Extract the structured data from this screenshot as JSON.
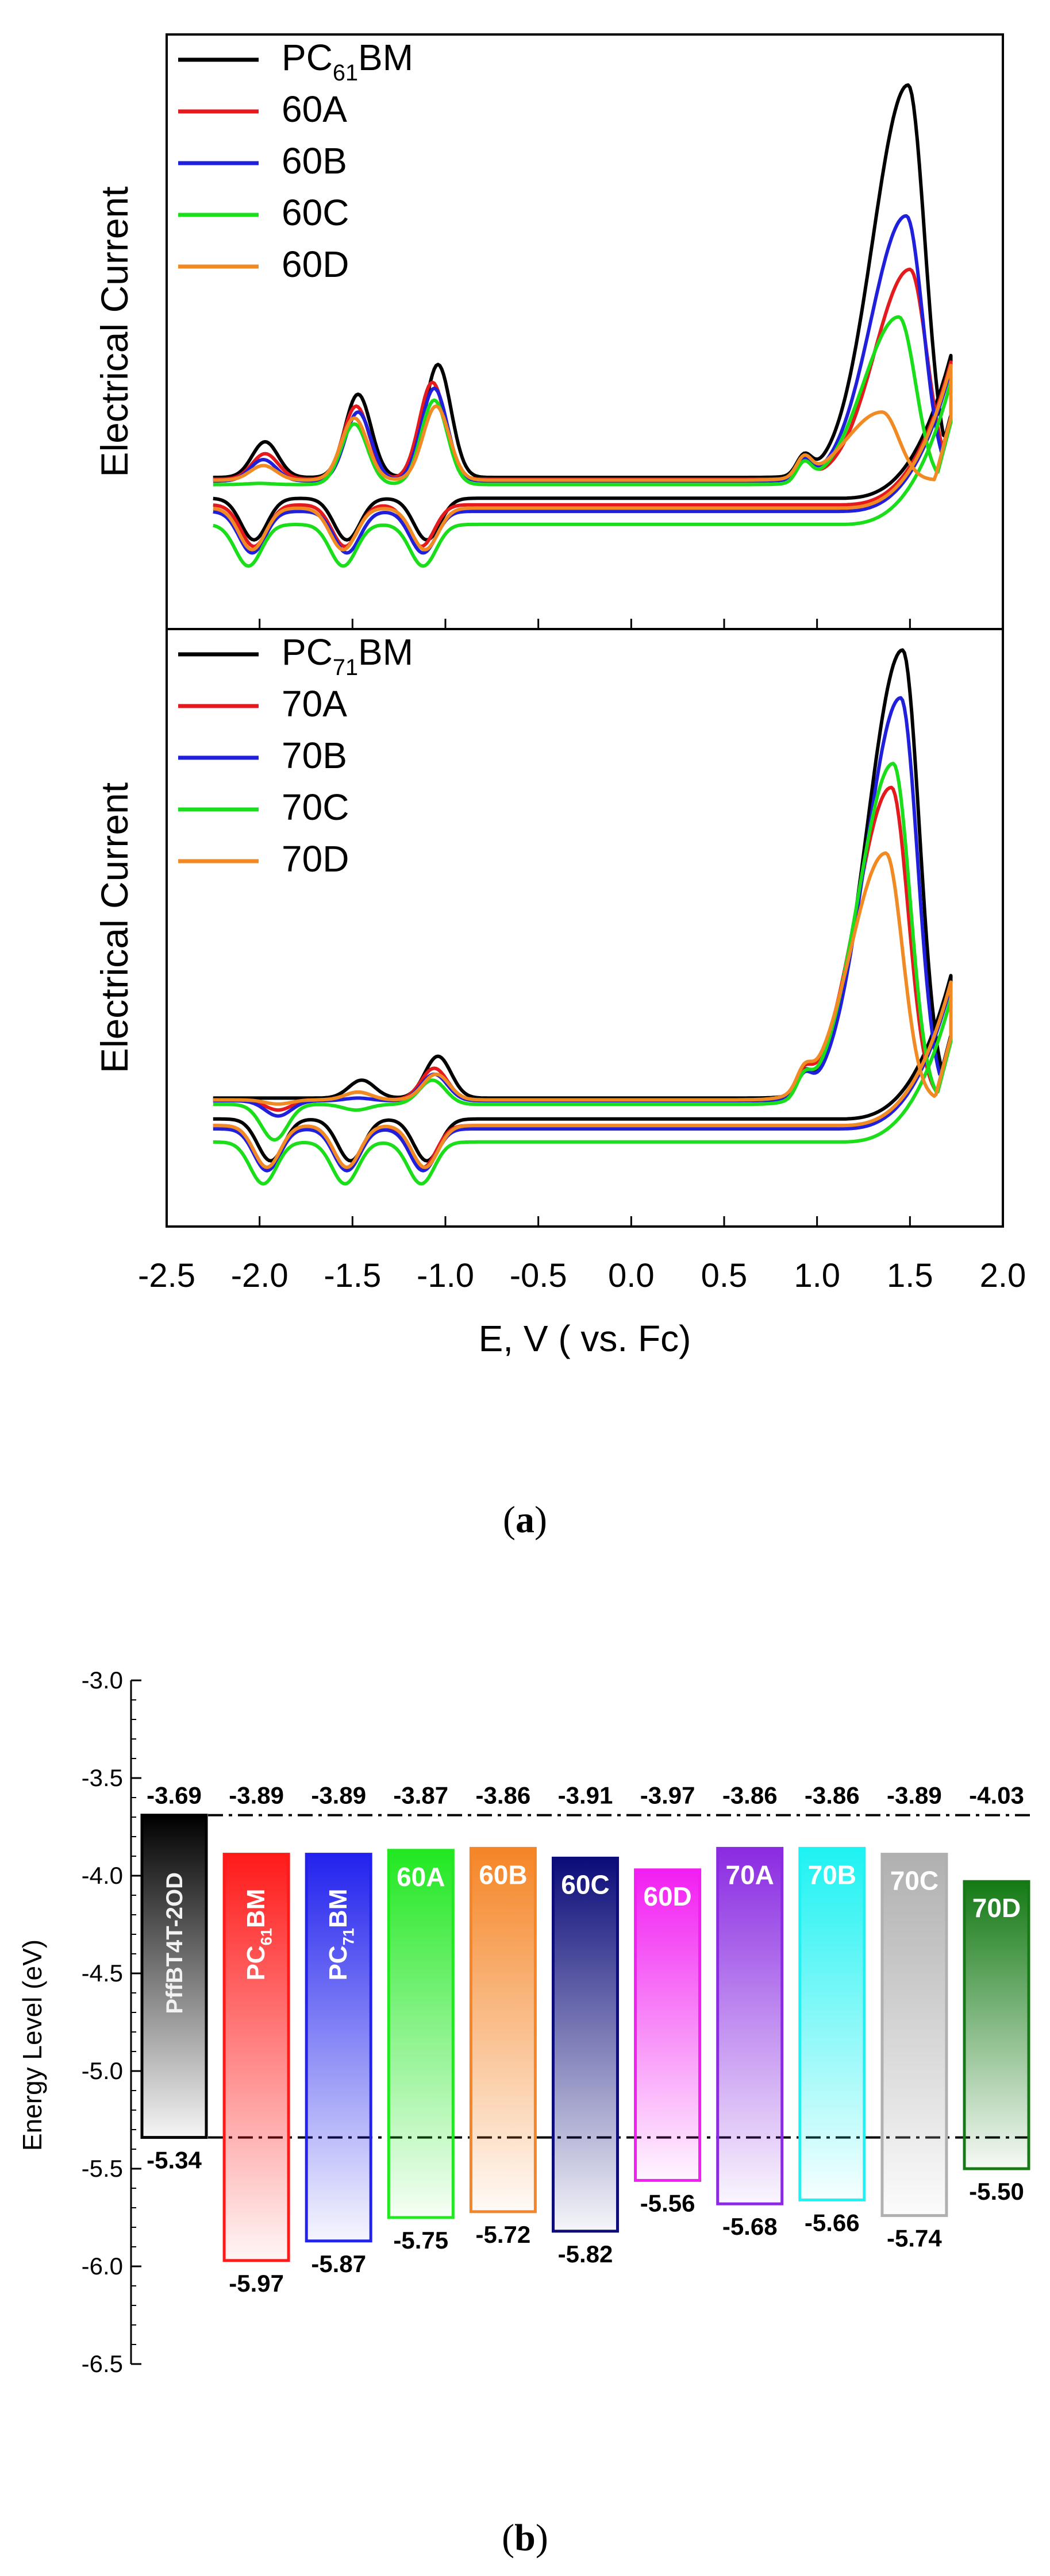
{
  "chart_data": [
    {
      "type": "line",
      "panel": "top",
      "ylabel": "Electrical Current",
      "xlabel": "E, V ( vs. Fc)",
      "xlim": [
        -2.5,
        2.0
      ],
      "ylim": [
        0,
        100
      ],
      "xticks": [
        "-2.5",
        "-2.0",
        "-1.5",
        "-1.0",
        "-0.5",
        "0.0",
        "0.5",
        "1.0",
        "1.5",
        "2.0"
      ],
      "legend_position": "top-left",
      "series": [
        {
          "name": "PC61BM",
          "label_main": "PC",
          "label_sub": "61",
          "label_tail": "BM",
          "color": "#000000",
          "peak": [
            1.49,
            90
          ],
          "redox": [
            [
              -1.97,
              30
            ],
            [
              -1.47,
              38
            ],
            [
              -1.04,
              43
            ]
          ],
          "shift": 0
        },
        {
          "name": "60A",
          "label_main": "60A",
          "label_sub": "",
          "label_tail": "",
          "color": "#e41a1c",
          "peak": [
            1.5,
            59
          ],
          "redox": [
            [
              -1.97,
              28
            ],
            [
              -1.48,
              36
            ],
            [
              -1.07,
              40
            ]
          ],
          "shift": -2
        },
        {
          "name": "60B",
          "label_main": "60B",
          "label_sub": "",
          "label_tail": "",
          "color": "#1f1fdc",
          "peak": [
            1.48,
            68
          ],
          "redox": [
            [
              -1.98,
              27
            ],
            [
              -1.47,
              35
            ],
            [
              -1.06,
              39
            ]
          ],
          "shift": -4
        },
        {
          "name": "60C",
          "label_main": "60C",
          "label_sub": "",
          "label_tail": "",
          "color": "#1bde1b",
          "peak": [
            1.44,
            51
          ],
          "redox": [
            [
              -2.0,
              23
            ],
            [
              -1.49,
              33
            ],
            [
              -1.06,
              37
            ]
          ],
          "shift": -8
        },
        {
          "name": "60D",
          "label_main": "60D",
          "label_sub": "",
          "label_tail": "",
          "color": "#f28a24",
          "peak": [
            1.35,
            35
          ],
          "redox": [
            [
              -1.98,
              26
            ],
            [
              -1.49,
              34
            ],
            [
              -1.05,
              36
            ]
          ],
          "shift": -3
        }
      ]
    },
    {
      "type": "line",
      "panel": "bottom",
      "ylabel": "Electrical Current",
      "xlabel": "E, V ( vs. Fc)",
      "xlim": [
        -2.5,
        2.0
      ],
      "ylim": [
        0,
        100
      ],
      "xticks": [
        "-2.5",
        "-2.0",
        "-1.5",
        "-1.0",
        "-0.5",
        "0.0",
        "0.5",
        "1.0",
        "1.5",
        "2.0"
      ],
      "legend_position": "top-left",
      "series": [
        {
          "name": "PC71BM",
          "label_main": "PC",
          "label_sub": "71",
          "label_tail": "BM",
          "color": "#000000",
          "peak": [
            1.46,
            95
          ],
          "redox": [
            [
              -1.88,
              20
            ],
            [
              -1.45,
              23
            ],
            [
              -1.04,
              27
            ]
          ],
          "shift": 0
        },
        {
          "name": "70A",
          "label_main": "70A",
          "label_sub": "",
          "label_tail": "",
          "color": "#e41a1c",
          "peak": [
            1.4,
            72
          ],
          "redox": [
            [
              -1.9,
              18
            ],
            [
              -1.47,
              21
            ],
            [
              -1.06,
              25
            ]
          ],
          "shift": -2
        },
        {
          "name": "70B",
          "label_main": "70B",
          "label_sub": "",
          "label_tail": "",
          "color": "#1f1fdc",
          "peak": [
            1.45,
            87
          ],
          "redox": [
            [
              -1.9,
              17
            ],
            [
              -1.47,
              20
            ],
            [
              -1.06,
              24
            ]
          ],
          "shift": -3
        },
        {
          "name": "70C",
          "label_main": "70C",
          "label_sub": "",
          "label_tail": "",
          "color": "#1bde1b",
          "peak": [
            1.41,
            76
          ],
          "redox": [
            [
              -1.92,
              13
            ],
            [
              -1.48,
              18
            ],
            [
              -1.07,
              23
            ]
          ],
          "shift": -7
        },
        {
          "name": "70D",
          "label_main": "70D",
          "label_sub": "",
          "label_tail": "",
          "color": "#f28a24",
          "peak": [
            1.37,
            61
          ],
          "redox": [
            [
              -1.9,
              19
            ],
            [
              -1.47,
              21
            ],
            [
              -1.05,
              24
            ]
          ],
          "shift": -2
        }
      ]
    },
    {
      "type": "bar",
      "subtype": "energy-level-diagram",
      "ylabel": "Energy Level (eV)",
      "ylim": [
        -6.5,
        -3.0
      ],
      "yticks": [
        "-3.0",
        "-3.5",
        "-4.0",
        "-4.5",
        "-5.0",
        "-5.5",
        "-6.0",
        "-6.5"
      ],
      "reference_lines": [
        -3.69,
        -5.34
      ],
      "categories": [
        {
          "label": "PffBT4T-2OD",
          "main": "PffBT4T-2OD",
          "sub": "",
          "tail": "",
          "lumo": -3.69,
          "homo": -5.34,
          "lumo_label": "-3.69",
          "homo_label": "-5.34",
          "color": "#000000",
          "text_color": "#f2f2f2"
        },
        {
          "label": "PC61BM",
          "main": "PC",
          "sub": "61",
          "tail": "BM",
          "lumo": -3.89,
          "homo": -5.97,
          "lumo_label": "-3.89",
          "homo_label": "-5.97",
          "color": "#ff1a1a",
          "text_color": "#ffffff"
        },
        {
          "label": "PC71BM",
          "main": "PC",
          "sub": "71",
          "tail": "BM",
          "lumo": -3.89,
          "homo": -5.87,
          "lumo_label": "-3.89",
          "homo_label": "-5.87",
          "color": "#2222ee",
          "text_color": "#ffffff"
        },
        {
          "label": "60A",
          "main": "60A",
          "sub": "",
          "tail": "",
          "lumo": -3.87,
          "homo": -5.75,
          "lumo_label": "-3.87",
          "homo_label": "-5.75",
          "color": "#22e822",
          "text_color": "#ffffff"
        },
        {
          "label": "60B",
          "main": "60B",
          "sub": "",
          "tail": "",
          "lumo": -3.86,
          "homo": -5.72,
          "lumo_label": "-3.86",
          "homo_label": "-5.72",
          "color": "#f58526",
          "text_color": "#ffffff"
        },
        {
          "label": "60C",
          "main": "60C",
          "sub": "",
          "tail": "",
          "lumo": -3.91,
          "homo": -5.82,
          "lumo_label": "-3.91",
          "homo_label": "-5.82",
          "color": "#0c0c7a",
          "text_color": "#ffffff"
        },
        {
          "label": "60D",
          "main": "60D",
          "sub": "",
          "tail": "",
          "lumo": -3.97,
          "homo": -5.56,
          "lumo_label": "-3.97",
          "homo_label": "-5.56",
          "color": "#f21ef2",
          "text_color": "#ffffff"
        },
        {
          "label": "70A",
          "main": "70A",
          "sub": "",
          "tail": "",
          "lumo": -3.86,
          "homo": -5.68,
          "lumo_label": "-3.86",
          "homo_label": "-5.68",
          "color": "#8a2be2",
          "text_color": "#ffffff"
        },
        {
          "label": "70B",
          "main": "70B",
          "sub": "",
          "tail": "",
          "lumo": -3.86,
          "homo": -5.66,
          "lumo_label": "-3.86",
          "homo_label": "-5.66",
          "color": "#1ef2f2",
          "text_color": "#ffffff"
        },
        {
          "label": "70C",
          "main": "70C",
          "sub": "",
          "tail": "",
          "lumo": -3.89,
          "homo": -5.74,
          "lumo_label": "-3.89",
          "homo_label": "-5.74",
          "color": "#b0b0b0",
          "text_color": "#ffffff"
        },
        {
          "label": "70D",
          "main": "70D",
          "sub": "",
          "tail": "",
          "lumo": -4.03,
          "homo": -5.5,
          "lumo_label": "-4.03",
          "homo_label": "-5.50",
          "color": "#157a15",
          "text_color": "#ffffff"
        }
      ]
    }
  ],
  "captions": {
    "a": {
      "open": "(",
      "letter": "a",
      "close": ")"
    },
    "b": {
      "open": "(",
      "letter": "b",
      "close": ")"
    }
  }
}
